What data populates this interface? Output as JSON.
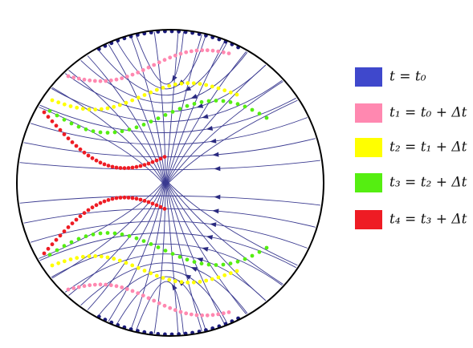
{
  "legend": [
    {
      "label": "t = t₀",
      "color": "#3f48cc"
    },
    {
      "label": "t₁ = t₀ + Δt",
      "color": "#ff88b0"
    },
    {
      "label": "t₂ = t₁ + Δt",
      "color": "#ffff00"
    },
    {
      "label": "t₃ = t₂ + Δt",
      "color": "#55ee11"
    },
    {
      "label": "t₄ = t₃ + Δt",
      "color": "#ee1c24"
    }
  ]
}
